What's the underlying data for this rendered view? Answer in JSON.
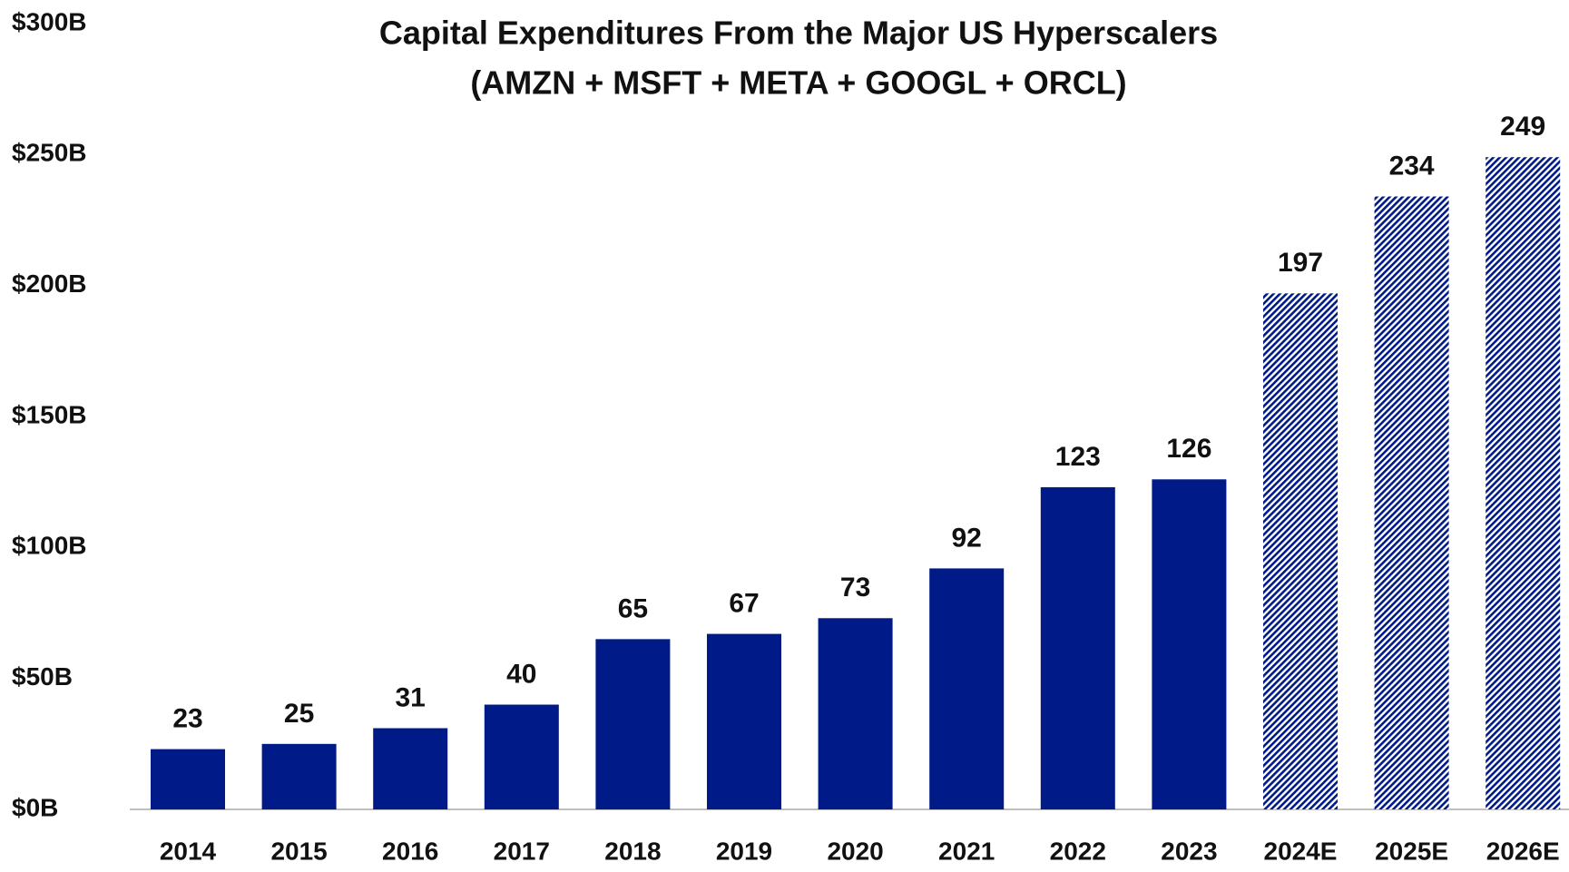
{
  "chart_data": {
    "type": "bar",
    "title": "Capital Expenditures From the Major US Hyperscalers",
    "subtitle": "(AMZN + MSFT + META + GOOGL + ORCL)",
    "categories": [
      "2014",
      "2015",
      "2016",
      "2017",
      "2018",
      "2019",
      "2020",
      "2021",
      "2022",
      "2023",
      "2024E",
      "2025E",
      "2026E"
    ],
    "series": [
      {
        "color": "#001a87",
        "pattern": "solid",
        "values": [
          23,
          25,
          31,
          40,
          65,
          67,
          73,
          92,
          123,
          126,
          null,
          null,
          null
        ]
      },
      {
        "color": "#001a87",
        "pattern": "hatched",
        "values": [
          null,
          null,
          null,
          null,
          null,
          null,
          null,
          null,
          null,
          null,
          197,
          234,
          249
        ]
      }
    ],
    "ylim": [
      0,
      300
    ],
    "yticks": [
      {
        "value": 0,
        "label": "$0B"
      },
      {
        "value": 50,
        "label": "$50B"
      },
      {
        "value": 100,
        "label": "$100B"
      },
      {
        "value": 150,
        "label": "$150B"
      },
      {
        "value": 200,
        "label": "$200B"
      },
      {
        "value": 250,
        "label": "$250B"
      },
      {
        "value": 300,
        "label": "$300B"
      }
    ],
    "grid": false
  }
}
